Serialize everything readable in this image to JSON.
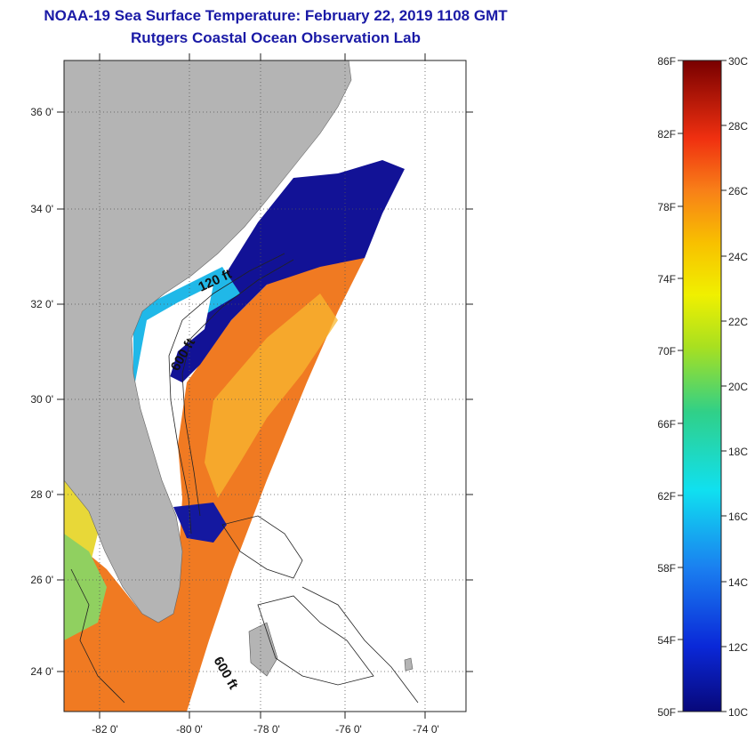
{
  "header": {
    "title": "NOAA-19 Sea Surface Temperature:  February 22, 2019 1108 GMT",
    "subtitle": "Rutgers Coastal Ocean Observation Lab"
  },
  "map": {
    "lat_labels": [
      "36 0'",
      "34 0'",
      "32 0'",
      "30 0'",
      "28 0'",
      "26 0'",
      "24 0'"
    ],
    "lon_labels": [
      "-82 0'",
      "-80 0'",
      "-78 0'",
      "-76 0'",
      "-74 0'"
    ],
    "contour_labels": [
      "120 ft",
      "600 ft",
      "600 ft"
    ]
  },
  "colorbar": {
    "f_labels": [
      "86F",
      "82F",
      "78F",
      "74F",
      "70F",
      "66F",
      "62F",
      "58F",
      "54F",
      "50F"
    ],
    "c_labels": [
      "30C",
      "28C",
      "26C",
      "24C",
      "22C",
      "20C",
      "18C",
      "16C",
      "14C",
      "12C",
      "10C"
    ]
  },
  "colors": {
    "title": "#1a1aa6",
    "land": "#b4b4b4",
    "sst_warm": "#f07820",
    "sst_cold": "#101090"
  }
}
